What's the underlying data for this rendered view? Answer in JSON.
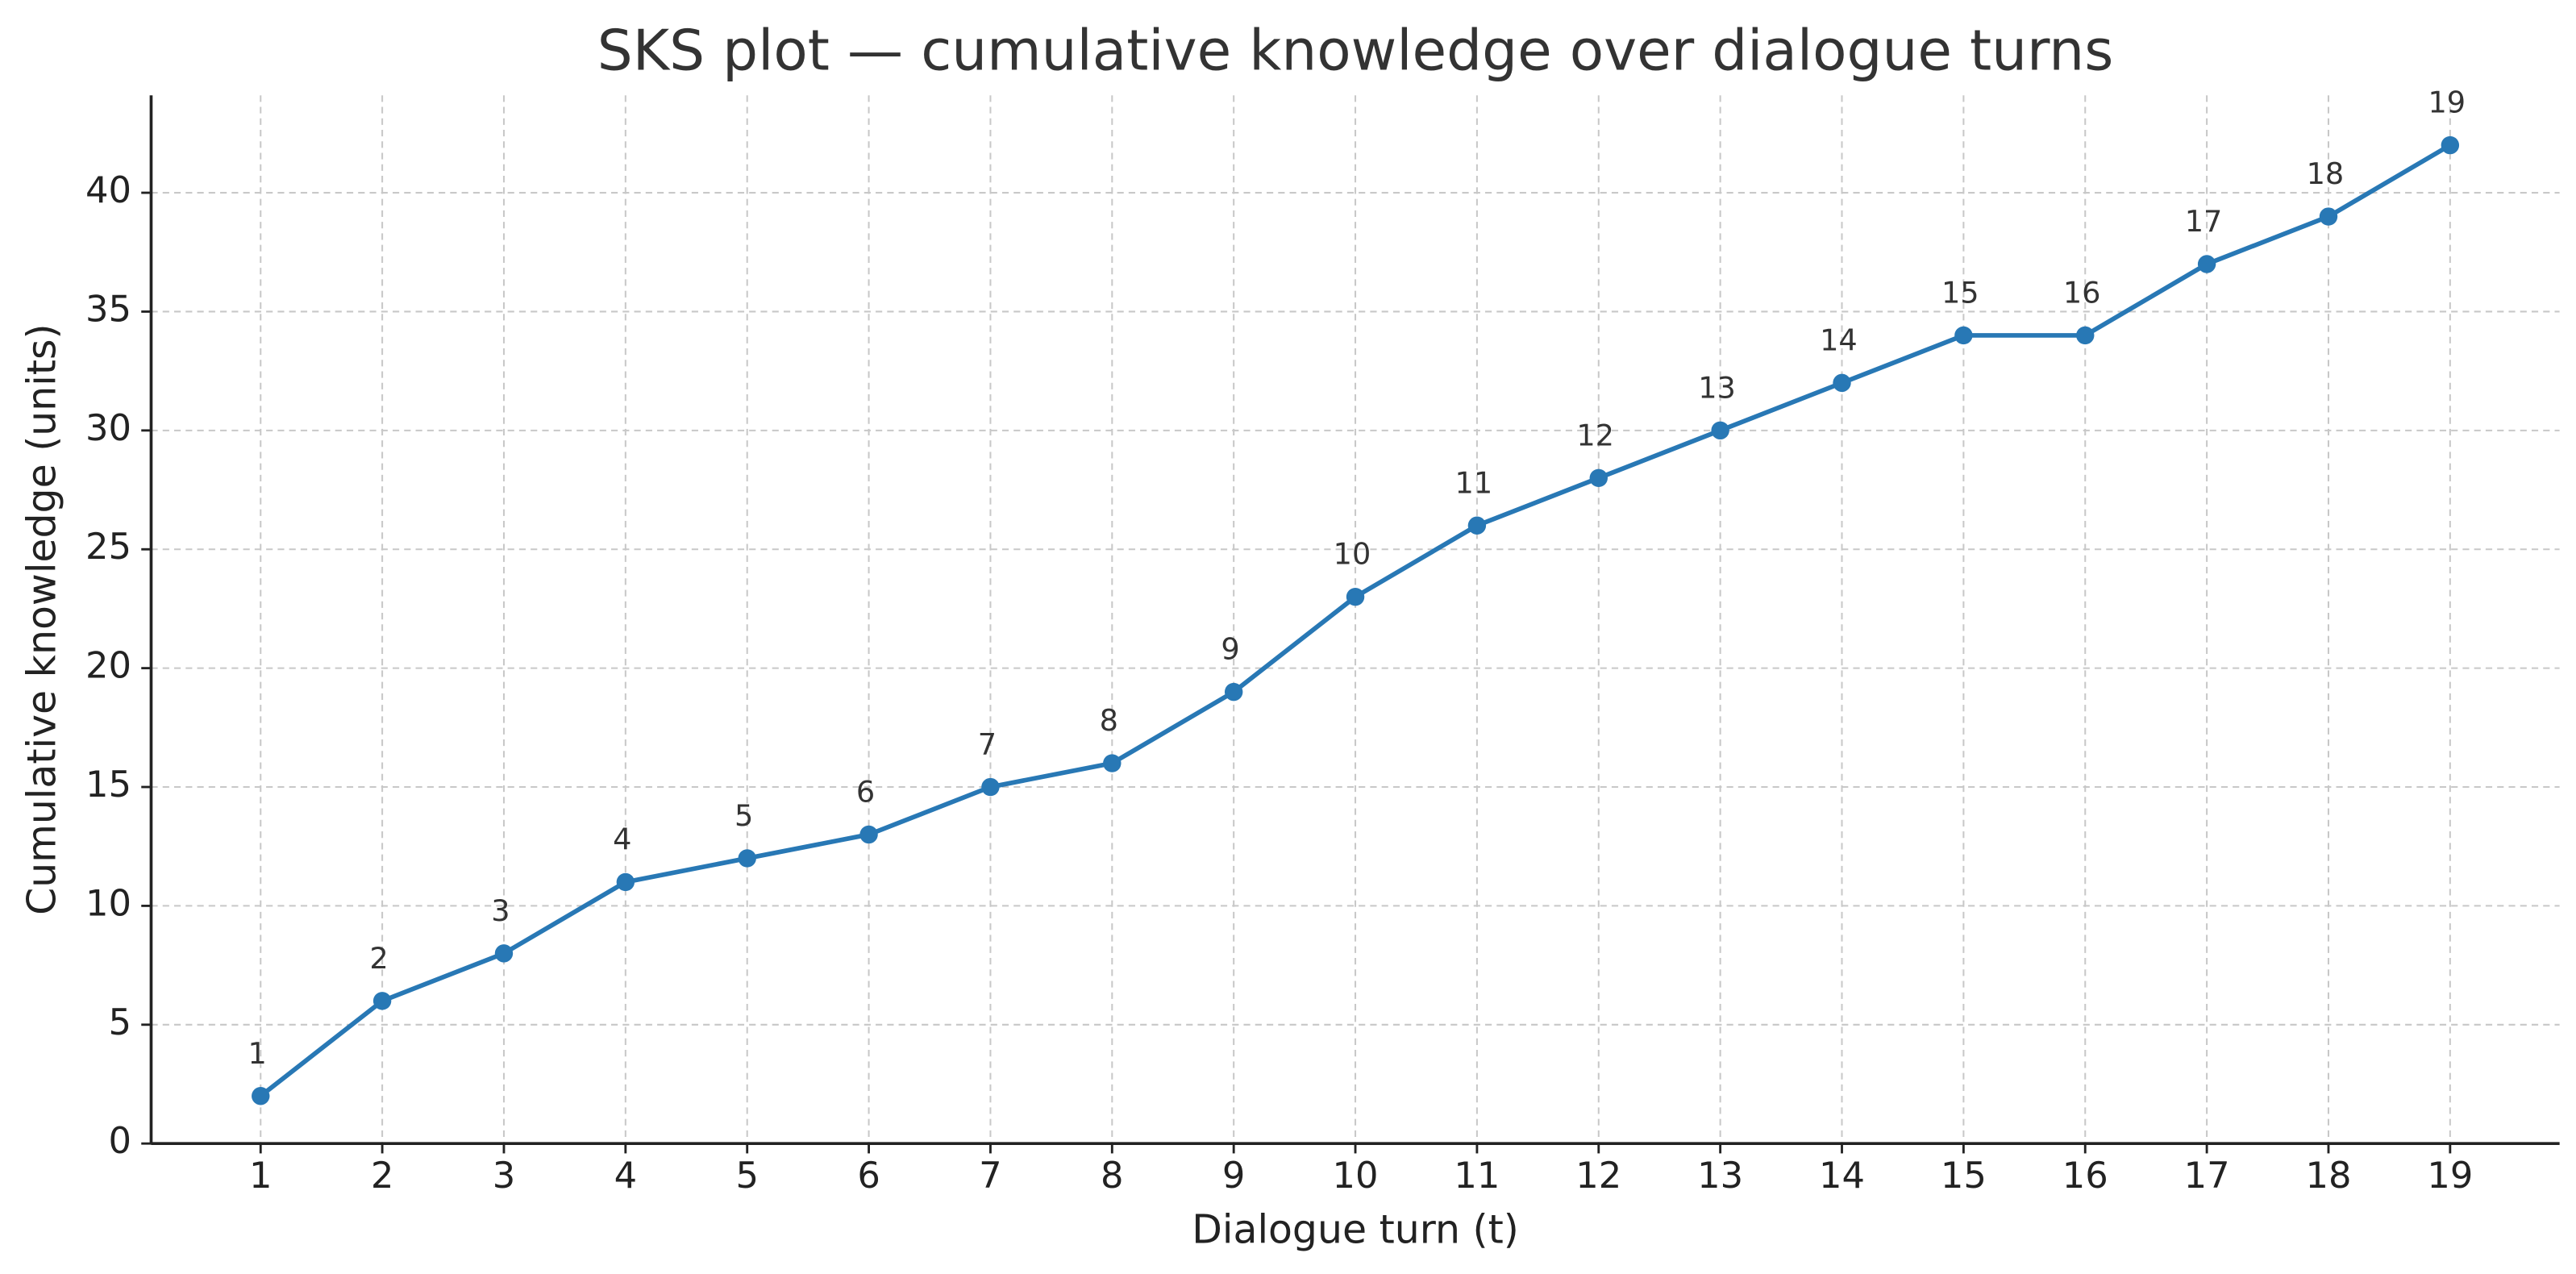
{
  "chart_data": {
    "type": "line",
    "title": "SKS plot — cumulative knowledge over dialogue turns",
    "x_label": "Dialogue turn (t)",
    "y_label": "Cumulative knowledge (units)",
    "x": [
      1,
      2,
      3,
      4,
      5,
      6,
      7,
      8,
      9,
      10,
      11,
      12,
      13,
      14,
      15,
      16,
      17,
      18,
      19
    ],
    "values": [
      2,
      6,
      8,
      11,
      12,
      13,
      15,
      16,
      19,
      23,
      26,
      28,
      30,
      32,
      34,
      34,
      37,
      39,
      42
    ],
    "color": "#2878b5",
    "xlim": [
      0.1,
      19.9
    ],
    "xticks": [
      1,
      2,
      3,
      4,
      5,
      6,
      7,
      8,
      9,
      10,
      11,
      12,
      13,
      14,
      15,
      16,
      17,
      18,
      19
    ],
    "ylim": [
      0,
      44.1
    ],
    "yticks": [
      0,
      5,
      10,
      15,
      20,
      25,
      30,
      35,
      40
    ],
    "grid": true
  }
}
